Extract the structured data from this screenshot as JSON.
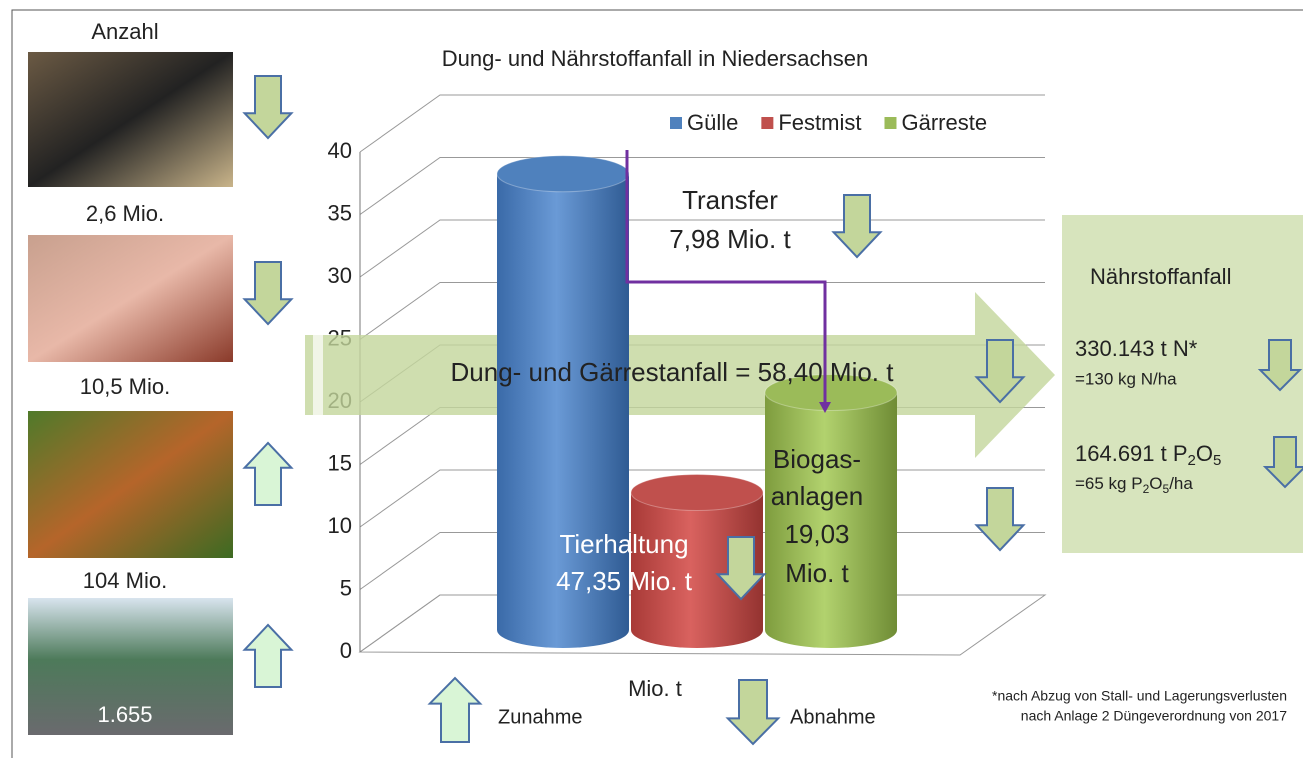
{
  "chart_data": {
    "type": "bar3d",
    "title": "Dung- und Nährstoffanfall in Niedersachsen",
    "x_label": "Mio. t",
    "categories": [
      null
    ],
    "series": [
      {
        "name": "Gülle",
        "color": "#4f81bd",
        "values": [
          36.5
        ]
      },
      {
        "name": "Festmist",
        "color": "#c0504d",
        "values": [
          11
        ]
      },
      {
        "name": "Gärreste",
        "color": "#9bbb59",
        "values": [
          19
        ]
      }
    ],
    "ylim": [
      0,
      40
    ],
    "yticks": [
      0,
      5,
      10,
      15,
      20,
      25,
      30,
      35,
      40
    ],
    "grid": true,
    "legend": "top-right",
    "annotations": {
      "transfer": [
        "Transfer",
        "7,98 Mio. t"
      ],
      "total": "Dung- und Gärrestanfall = 58,40 Mio. t",
      "livestock": [
        "Tierhaltung",
        "47,35 Mio. t"
      ],
      "biogas": [
        "Biogas-",
        "anlagen",
        "19,03",
        "Mio. t"
      ]
    }
  },
  "sidebar": {
    "header": "Anzahl",
    "counts": [
      "2,6 Mio.",
      "10,5 Mio.",
      "104 Mio.",
      "1.655"
    ]
  },
  "nutrients": {
    "title": "Nährstoffanfall",
    "n": {
      "amount": "330.143 t N*",
      "per_ha": "=130 kg N/ha"
    },
    "p": {
      "amount": [
        "164.691 t P",
        "2",
        "O",
        "5"
      ],
      "per_ha": [
        "=65 kg P",
        "2",
        "O",
        "5",
        "/ha"
      ]
    }
  },
  "key": {
    "up": "Zunahme",
    "down": "Abnahme"
  },
  "footnote": [
    "*nach Abzug von Stall- und Lagerungsverlusten",
    "nach Anlage 2 Düngeverordnung von 2017"
  ]
}
